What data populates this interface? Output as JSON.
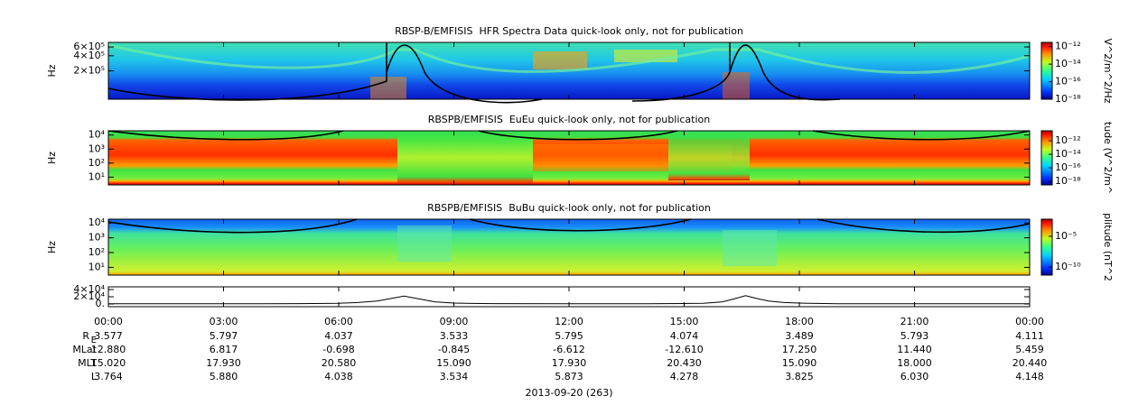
{
  "chart_data": [
    {
      "type": "spectrogram",
      "title": "RBSP-B/EMFISIS  HFR Spectra Data quick-look only, not for publication",
      "ylabel": "Hz",
      "log": true,
      "ylim": [
        54000,
        740000
      ],
      "yticks": [
        {
          "value": 200000,
          "label": "2×10⁵"
        },
        {
          "value": 400000,
          "label": "4×10⁵"
        },
        {
          "value": 600000,
          "label": "6×10⁵"
        }
      ],
      "colorbar": {
        "label": "V^2/m^2/Hz",
        "clim": [
          1e-18,
          3e-12
        ],
        "ticks": [
          {
            "value": 1e-12,
            "label": "10⁻¹²"
          },
          {
            "value": 1e-14,
            "label": "10⁻¹⁴"
          },
          {
            "value": 1e-16,
            "label": "10⁻¹⁶"
          },
          {
            "value": 1e-18,
            "label": "10⁻¹⁸"
          }
        ]
      }
    },
    {
      "type": "spectrogram",
      "title": "RBSPB/EMFISIS  EuEu quick-look only, not for publication",
      "ylabel": "Hz",
      "log": true,
      "ylim": [
        2.8,
        20000
      ],
      "yticks": [
        {
          "value": 10,
          "label": "10¹"
        },
        {
          "value": 100,
          "label": "10²"
        },
        {
          "value": 1000,
          "label": "10³"
        },
        {
          "value": 10000,
          "label": "10⁴"
        }
      ],
      "colorbar": {
        "label": "tude (V^2/m^",
        "clim": [
          3e-19,
          3e-11
        ],
        "ticks": [
          {
            "value": 1e-12,
            "label": "10⁻¹²"
          },
          {
            "value": 1e-14,
            "label": "10⁻¹⁴"
          },
          {
            "value": 1e-16,
            "label": "10⁻¹⁶"
          },
          {
            "value": 1e-18,
            "label": "10⁻¹⁸"
          }
        ]
      }
    },
    {
      "type": "spectrogram",
      "title": "RBSPB/EMFISIS  BuBu quick-look only, not for publication",
      "ylabel": "Hz",
      "log": true,
      "ylim": [
        3,
        18000
      ],
      "yticks": [
        {
          "value": 10,
          "label": "10¹"
        },
        {
          "value": 100,
          "label": "10²"
        },
        {
          "value": 1000,
          "label": "10³"
        },
        {
          "value": 10000,
          "label": "10⁴"
        }
      ],
      "colorbar": {
        "label": "plitude (nT^2",
        "clim": [
          5e-12,
          0.006
        ],
        "ticks": [
          {
            "value": 1e-05,
            "label": "10⁻⁵"
          },
          {
            "value": 1e-10,
            "label": "10⁻¹⁰"
          }
        ]
      }
    },
    {
      "type": "line",
      "color": "#000000",
      "log": false,
      "ylim": [
        -7500,
        47500
      ],
      "yticks": [
        {
          "value": 0,
          "label": "0."
        },
        {
          "value": 20000,
          "label": "2×10⁴"
        },
        {
          "value": 40000,
          "label": "4×10⁴"
        }
      ],
      "xlim": [
        0,
        24
      ],
      "xticks": [
        {
          "value": 0,
          "label": "00:00"
        },
        {
          "value": 3,
          "label": "03:00"
        },
        {
          "value": 6,
          "label": "06:00"
        },
        {
          "value": 9,
          "label": "09:00"
        },
        {
          "value": 12,
          "label": "12:00"
        },
        {
          "value": 15,
          "label": "15:00"
        },
        {
          "value": 18,
          "label": "18:00"
        },
        {
          "value": 21,
          "label": "21:00"
        },
        {
          "value": 24,
          "label": "00:00"
        }
      ],
      "x": [
        0,
        2,
        4,
        5,
        6,
        6.5,
        7,
        7.4,
        7.7,
        8,
        8.5,
        9,
        9.5,
        10,
        12,
        14,
        15,
        15.5,
        16,
        16.3,
        16.6,
        16.9,
        17.2,
        17.6,
        18,
        19,
        21,
        24
      ],
      "values": [
        500,
        400,
        600,
        1000,
        2000,
        4000,
        8000,
        16000,
        22000,
        16000,
        6000,
        2500,
        1500,
        900,
        500,
        600,
        1200,
        2000,
        6000,
        14000,
        23000,
        15000,
        8000,
        4000,
        2500,
        800,
        400,
        400
      ]
    }
  ],
  "ephemeris": {
    "rows": [
      {
        "label": "R",
        "label_sub": "E",
        "values": [
          "3.577",
          "5.797",
          "4.037",
          "3.533",
          "5.795",
          "4.074",
          "3.489",
          "5.793",
          "4.111"
        ]
      },
      {
        "label": "MLat",
        "values": [
          "12.880",
          "6.817",
          "-0.698",
          "-0.845",
          "-6.612",
          "-12.610",
          "17.250",
          "11.440",
          "5.459"
        ]
      },
      {
        "label": "MLT",
        "values": [
          "15.020",
          "17.930",
          "20.580",
          "15.090",
          "17.930",
          "20.430",
          "15.090",
          "18.000",
          "20.440"
        ]
      },
      {
        "label": "L",
        "values": [
          "3.764",
          "5.880",
          "4.038",
          "3.534",
          "5.873",
          "4.278",
          "3.825",
          "6.030",
          "4.148"
        ]
      }
    ]
  },
  "date": "2013-09-20 (263)"
}
